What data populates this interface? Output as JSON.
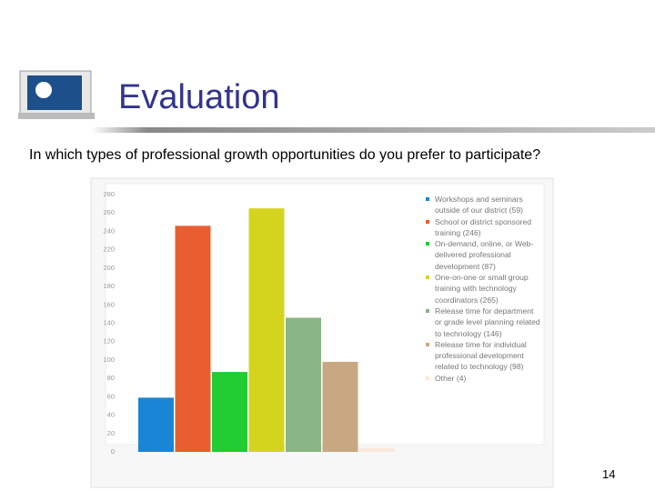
{
  "slide": {
    "title": "Evaluation",
    "page_number": "14"
  },
  "chart_data": {
    "type": "bar",
    "title": "In which types of professional growth opportunities do you prefer to participate?",
    "categories": [
      "Workshops and seminars outside of our district (59)",
      "School or district sponsored training (246)",
      "On-demand, online, or Web-delivered professional development (87)",
      "One-on-one or small group training with technology coordinators (265)",
      "Release time for department or grade level planning related to technology (146)",
      "Release time for individual professional development related to technology (98)",
      "Other (4)"
    ],
    "values": [
      59,
      246,
      87,
      265,
      146,
      98,
      4
    ],
    "colors": [
      "#1a85d6",
      "#e85e30",
      "#22cc33",
      "#d4d41e",
      "#8ab584",
      "#c8a882",
      "#fbe8dc"
    ],
    "ylim": [
      0,
      280
    ],
    "yticks": [
      0,
      20,
      40,
      60,
      80,
      100,
      120,
      140,
      160,
      180,
      200,
      220,
      240,
      260,
      280
    ],
    "grid": false
  }
}
